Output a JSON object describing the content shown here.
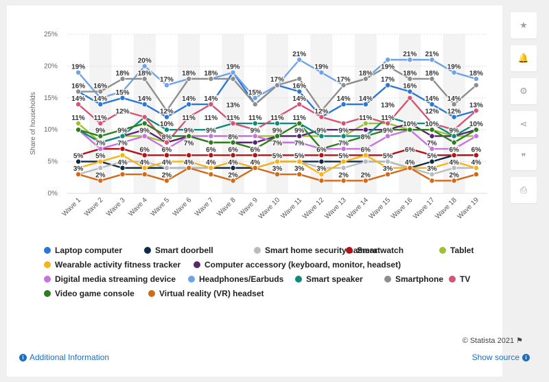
{
  "credit": "© Statista 2021",
  "footer": {
    "additional_info": "Additional Information",
    "show_source": "Show source"
  },
  "toolbar": [
    {
      "icon": "star-icon",
      "glyph": "★"
    },
    {
      "icon": "bell-icon",
      "glyph": "🔔"
    },
    {
      "icon": "gear-icon",
      "glyph": "⚙"
    },
    {
      "icon": "share-icon",
      "glyph": "⋖"
    },
    {
      "icon": "quote-icon",
      "glyph": "❞"
    },
    {
      "icon": "print-icon",
      "glyph": "⎙"
    }
  ],
  "chart_data": {
    "type": "line",
    "ylabel": "Share of households",
    "xlabel": "",
    "ylim": [
      0,
      25
    ],
    "yticks": [
      "0%",
      "5%",
      "10%",
      "15%",
      "20%",
      "25%"
    ],
    "categories": [
      "Wave 1",
      "Wave 2",
      "Wave 3",
      "Wave 4",
      "Wave 5",
      "Wave 6",
      "Wave 7",
      "Wave 8",
      "Wave 9",
      "Wave 10",
      "Wave 11",
      "Wave 12",
      "Wave 13",
      "Wave 14",
      "Wave 15",
      "Wave 16",
      "Wave 17",
      "Wave 18",
      "Wave 19"
    ],
    "legend_position": "bottom",
    "grid": "alternating column bands",
    "series": [
      {
        "name": "Laptop computer",
        "color": "#2a77d6",
        "values": [
          16,
          14,
          15,
          14,
          12,
          14,
          14,
          19,
          14,
          17,
          16,
          12,
          14,
          14,
          17,
          16,
          14,
          12,
          13
        ]
      },
      {
        "name": "Smart doorbell",
        "color": "#0f2a46",
        "values": [
          5,
          5,
          4,
          4,
          4,
          4,
          4,
          4,
          4,
          5,
          5,
          5,
          5,
          5,
          5,
          4,
          5,
          6,
          6
        ]
      },
      {
        "name": "Smart home security camera",
        "color": "#b8bbbf",
        "values": [
          3,
          4,
          5,
          5,
          4,
          4,
          4,
          5,
          4,
          5,
          5,
          4,
          4,
          5,
          5,
          4,
          3,
          4,
          4
        ]
      },
      {
        "name": "Smartwatch",
        "color": "#b31217",
        "values": [
          6,
          7,
          7,
          6,
          6,
          6,
          6,
          6,
          6,
          6,
          6,
          6,
          6,
          6,
          6,
          7,
          6,
          6,
          6
        ]
      },
      {
        "name": "Tablet",
        "color": "#9ac232",
        "values": [
          11,
          8,
          9,
          9,
          8,
          9,
          9,
          9,
          9,
          9,
          9,
          9,
          9,
          11,
          11,
          10,
          10,
          9,
          9
        ]
      },
      {
        "name": "Wearable activity fitness tracker",
        "color": "#f4b41a",
        "values": [
          4,
          5,
          6,
          4,
          5,
          5,
          4,
          5,
          4,
          5,
          5,
          3,
          5,
          6,
          4,
          4,
          4,
          5,
          4
        ]
      },
      {
        "name": "Computer accessory (keyboard, monitor, headset)",
        "color": "#5a2671",
        "values": [
          10,
          8,
          9,
          10,
          8,
          9,
          8,
          8,
          8,
          9,
          9,
          10,
          10,
          10,
          10,
          11,
          9,
          9,
          10
        ]
      },
      {
        "name": "Digital media streaming device",
        "color": "#c772dd",
        "values": [
          10,
          7,
          8,
          9,
          7,
          9,
          9,
          9,
          9,
          8,
          8,
          7,
          7,
          7,
          9,
          10,
          7,
          7,
          9
        ]
      },
      {
        "name": "Headphones/Earbuds",
        "color": "#6fa3e8",
        "values": [
          19,
          15,
          16,
          20,
          17,
          18,
          18,
          19,
          15,
          17,
          21,
          19,
          17,
          18,
          21,
          21,
          21,
          19,
          18
        ]
      },
      {
        "name": "Smart speaker",
        "color": "#0f8b7b",
        "values": [
          10,
          8,
          9,
          12,
          10,
          10,
          10,
          11,
          11,
          11,
          11,
          9,
          9,
          9,
          12,
          11,
          11,
          9,
          11
        ]
      },
      {
        "name": "Smartphone",
        "color": "#8e8e8e",
        "values": [
          16,
          16,
          18,
          18,
          13,
          18,
          18,
          18,
          14,
          17,
          18,
          13,
          17,
          18,
          20,
          18,
          18,
          14,
          17
        ]
      },
      {
        "name": "TV",
        "color": "#d45574",
        "values": [
          14,
          11,
          13,
          12,
          8,
          12,
          14,
          11,
          10,
          12,
          14,
          12,
          11,
          12,
          11,
          15,
          11,
          10,
          13
        ]
      },
      {
        "name": "Video game console",
        "color": "#2e7d1e",
        "values": [
          10,
          9,
          10,
          11,
          9,
          9,
          8,
          8,
          7,
          9,
          11,
          7,
          8,
          9,
          10,
          10,
          10,
          8,
          10
        ]
      },
      {
        "name": "Virtual reality (VR) headset",
        "color": "#d26a18",
        "values": [
          3,
          2,
          3,
          3,
          2,
          4,
          3,
          2,
          4,
          3,
          3,
          2,
          2,
          2,
          3,
          4,
          2,
          2,
          3
        ]
      }
    ],
    "data_labels": [
      {
        "cat": 0,
        "y": 19,
        "text": "19%"
      },
      {
        "cat": 0,
        "y": 16,
        "text": "16%"
      },
      {
        "cat": 0,
        "y": 14,
        "text": "14%"
      },
      {
        "cat": 0,
        "y": 11,
        "text": "11%"
      },
      {
        "cat": 0,
        "y": 5,
        "text": "5%"
      },
      {
        "cat": 0,
        "y": 3,
        "text": "3%"
      },
      {
        "cat": 1,
        "y": 16,
        "text": "16%"
      },
      {
        "cat": 1,
        "y": 14,
        "text": "14%"
      },
      {
        "cat": 1,
        "y": 11,
        "text": "11%"
      },
      {
        "cat": 1,
        "y": 9,
        "text": "9%"
      },
      {
        "cat": 1,
        "y": 7,
        "text": "7%"
      },
      {
        "cat": 1,
        "y": 5,
        "text": "5%"
      },
      {
        "cat": 1,
        "y": 2,
        "text": "2%"
      },
      {
        "cat": 2,
        "y": 18,
        "text": "18%"
      },
      {
        "cat": 2,
        "y": 15,
        "text": "15%"
      },
      {
        "cat": 2,
        "y": 12,
        "text": "12%"
      },
      {
        "cat": 2,
        "y": 9,
        "text": "9%"
      },
      {
        "cat": 2,
        "y": 7,
        "text": "7%"
      },
      {
        "cat": 2,
        "y": 4,
        "text": "4%"
      },
      {
        "cat": 3,
        "y": 20,
        "text": "20%"
      },
      {
        "cat": 3,
        "y": 18,
        "text": "18%"
      },
      {
        "cat": 3,
        "y": 14,
        "text": "14%"
      },
      {
        "cat": 3,
        "y": 9,
        "text": "9%"
      },
      {
        "cat": 3,
        "y": 6,
        "text": "6%"
      },
      {
        "cat": 3,
        "y": 4,
        "text": "4%"
      },
      {
        "cat": 4,
        "y": 17,
        "text": "17%"
      },
      {
        "cat": 4,
        "y": 12,
        "text": "12%"
      },
      {
        "cat": 4,
        "y": 10,
        "text": "10%"
      },
      {
        "cat": 4,
        "y": 8,
        "text": "8%"
      },
      {
        "cat": 4,
        "y": 6,
        "text": "6%"
      },
      {
        "cat": 4,
        "y": 4,
        "text": "4%"
      },
      {
        "cat": 4,
        "y": 2,
        "text": "2%"
      },
      {
        "cat": 5,
        "y": 18,
        "text": "18%"
      },
      {
        "cat": 5,
        "y": 14,
        "text": "14%"
      },
      {
        "cat": 5,
        "y": 11,
        "text": "11%"
      },
      {
        "cat": 5,
        "y": 9,
        "text": "9%"
      },
      {
        "cat": 5,
        "y": 7,
        "text": "7%"
      },
      {
        "cat": 5,
        "y": 4,
        "text": "4%"
      },
      {
        "cat": 6,
        "y": 18,
        "text": "18%"
      },
      {
        "cat": 6,
        "y": 14,
        "text": "14%"
      },
      {
        "cat": 6,
        "y": 11,
        "text": "11%"
      },
      {
        "cat": 6,
        "y": 9,
        "text": "9%"
      },
      {
        "cat": 6,
        "y": 6,
        "text": "6%"
      },
      {
        "cat": 6,
        "y": 4,
        "text": "4%"
      },
      {
        "cat": 7,
        "y": 19,
        "text": "19%"
      },
      {
        "cat": 7,
        "y": 13,
        "text": "13%"
      },
      {
        "cat": 7,
        "y": 11,
        "text": "11%"
      },
      {
        "cat": 7,
        "y": 8,
        "text": "8%"
      },
      {
        "cat": 7,
        "y": 6,
        "text": "6%"
      },
      {
        "cat": 7,
        "y": 4,
        "text": "4%"
      },
      {
        "cat": 7,
        "y": 2,
        "text": "2%"
      },
      {
        "cat": 8,
        "y": 15,
        "text": "15%"
      },
      {
        "cat": 8,
        "y": 11,
        "text": "11%"
      },
      {
        "cat": 8,
        "y": 9,
        "text": "9%"
      },
      {
        "cat": 8,
        "y": 6,
        "text": "6%"
      },
      {
        "cat": 8,
        "y": 4,
        "text": "4%"
      },
      {
        "cat": 9,
        "y": 17,
        "text": "17%"
      },
      {
        "cat": 9,
        "y": 11,
        "text": "11%"
      },
      {
        "cat": 9,
        "y": 9,
        "text": "9%"
      },
      {
        "cat": 9,
        "y": 7,
        "text": "7%"
      },
      {
        "cat": 9,
        "y": 5,
        "text": "5%"
      },
      {
        "cat": 9,
        "y": 3,
        "text": "3%"
      },
      {
        "cat": 10,
        "y": 21,
        "text": "21%"
      },
      {
        "cat": 10,
        "y": 16,
        "text": "16%"
      },
      {
        "cat": 10,
        "y": 14,
        "text": "14%"
      },
      {
        "cat": 10,
        "y": 11,
        "text": "11%"
      },
      {
        "cat": 10,
        "y": 9,
        "text": "9%"
      },
      {
        "cat": 10,
        "y": 7,
        "text": "7%"
      },
      {
        "cat": 10,
        "y": 5,
        "text": "5%"
      },
      {
        "cat": 10,
        "y": 3,
        "text": "3%"
      },
      {
        "cat": 11,
        "y": 19,
        "text": "19%"
      },
      {
        "cat": 11,
        "y": 12,
        "text": "12%"
      },
      {
        "cat": 11,
        "y": 9,
        "text": "9%"
      },
      {
        "cat": 11,
        "y": 6,
        "text": "6%"
      },
      {
        "cat": 11,
        "y": 3,
        "text": "3%"
      },
      {
        "cat": 12,
        "y": 17,
        "text": "17%"
      },
      {
        "cat": 12,
        "y": 14,
        "text": "14%"
      },
      {
        "cat": 12,
        "y": 9,
        "text": "9%"
      },
      {
        "cat": 12,
        "y": 7,
        "text": "7%"
      },
      {
        "cat": 12,
        "y": 5,
        "text": "5%"
      },
      {
        "cat": 12,
        "y": 2,
        "text": "2%"
      },
      {
        "cat": 13,
        "y": 18,
        "text": "18%"
      },
      {
        "cat": 13,
        "y": 14,
        "text": "14%"
      },
      {
        "cat": 13,
        "y": 11,
        "text": "11%"
      },
      {
        "cat": 13,
        "y": 8,
        "text": "8%"
      },
      {
        "cat": 13,
        "y": 6,
        "text": "6%"
      },
      {
        "cat": 13,
        "y": 2,
        "text": "2%"
      },
      {
        "cat": 14,
        "y": 19,
        "text": "19%"
      },
      {
        "cat": 14,
        "y": 17,
        "text": "17%"
      },
      {
        "cat": 14,
        "y": 13,
        "text": "13%"
      },
      {
        "cat": 14,
        "y": 11,
        "text": "11%"
      },
      {
        "cat": 14,
        "y": 9,
        "text": "9%"
      },
      {
        "cat": 14,
        "y": 5,
        "text": "5%"
      },
      {
        "cat": 14,
        "y": 3,
        "text": "3%"
      },
      {
        "cat": 15,
        "y": 21,
        "text": "21%"
      },
      {
        "cat": 15,
        "y": 18,
        "text": "18%"
      },
      {
        "cat": 15,
        "y": 16,
        "text": "16%"
      },
      {
        "cat": 15,
        "y": 10,
        "text": "10%"
      },
      {
        "cat": 15,
        "y": 6,
        "text": "6%"
      },
      {
        "cat": 15,
        "y": 4,
        "text": "4%"
      },
      {
        "cat": 16,
        "y": 21,
        "text": "21%"
      },
      {
        "cat": 16,
        "y": 18,
        "text": "18%"
      },
      {
        "cat": 16,
        "y": 14,
        "text": "14%"
      },
      {
        "cat": 16,
        "y": 12,
        "text": "12%"
      },
      {
        "cat": 16,
        "y": 10,
        "text": "10%"
      },
      {
        "cat": 16,
        "y": 7,
        "text": "7%"
      },
      {
        "cat": 16,
        "y": 5,
        "text": "5%"
      },
      {
        "cat": 16,
        "y": 3,
        "text": "3%"
      },
      {
        "cat": 17,
        "y": 19,
        "text": "19%"
      },
      {
        "cat": 17,
        "y": 14,
        "text": "14%"
      },
      {
        "cat": 17,
        "y": 12,
        "text": "12%"
      },
      {
        "cat": 17,
        "y": 9,
        "text": "9%"
      },
      {
        "cat": 17,
        "y": 6,
        "text": "6%"
      },
      {
        "cat": 17,
        "y": 4,
        "text": "4%"
      },
      {
        "cat": 17,
        "y": 2,
        "text": "2%"
      },
      {
        "cat": 18,
        "y": 18,
        "text": "18%"
      },
      {
        "cat": 18,
        "y": 13,
        "text": "13%"
      },
      {
        "cat": 18,
        "y": 10,
        "text": "10%"
      },
      {
        "cat": 18,
        "y": 6,
        "text": "6%"
      },
      {
        "cat": 18,
        "y": 4,
        "text": "4%"
      }
    ]
  }
}
